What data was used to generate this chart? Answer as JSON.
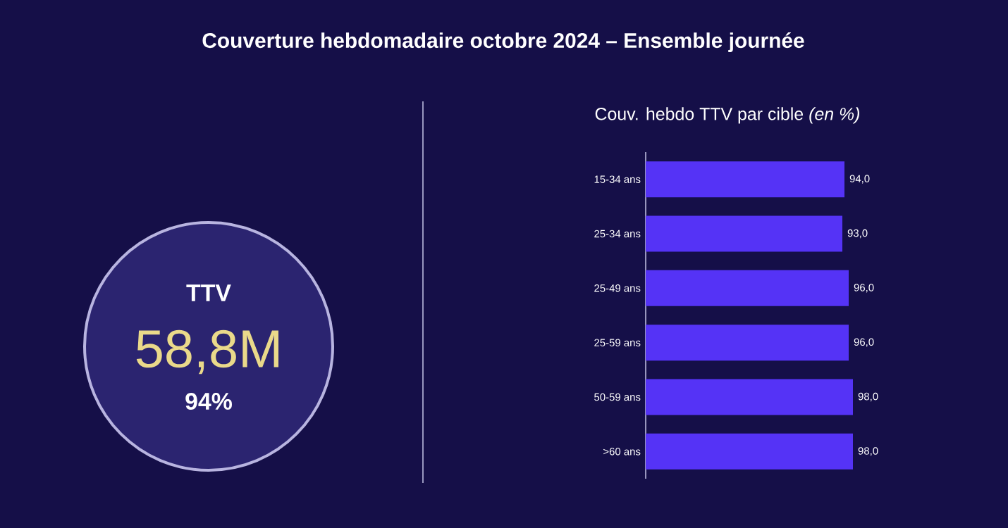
{
  "chart_data": [
    {
      "type": "other",
      "title": "Couverture hebdomadaire octobre 2024 – Ensemble journée",
      "subtitle": "TTV",
      "annotations": [
        "58,8M",
        "94%"
      ]
    },
    {
      "type": "bar",
      "orientation": "horizontal",
      "title": "Couv. hebdo TTV par cible *(en %)*",
      "categories": [
        "15-34 ans",
        "25-34 ans",
        "25-49 ans",
        "25-59 ans",
        "50-59 ans",
        ">60 ans"
      ],
      "values": [
        94.0,
        93.0,
        96.0,
        96.0,
        98.0,
        98.0
      ],
      "value_labels": [
        "94,0",
        "93,0",
        "96,0",
        "96,0",
        "98,0",
        "98,0"
      ],
      "color": "#5533f6"
    }
  ]
}
